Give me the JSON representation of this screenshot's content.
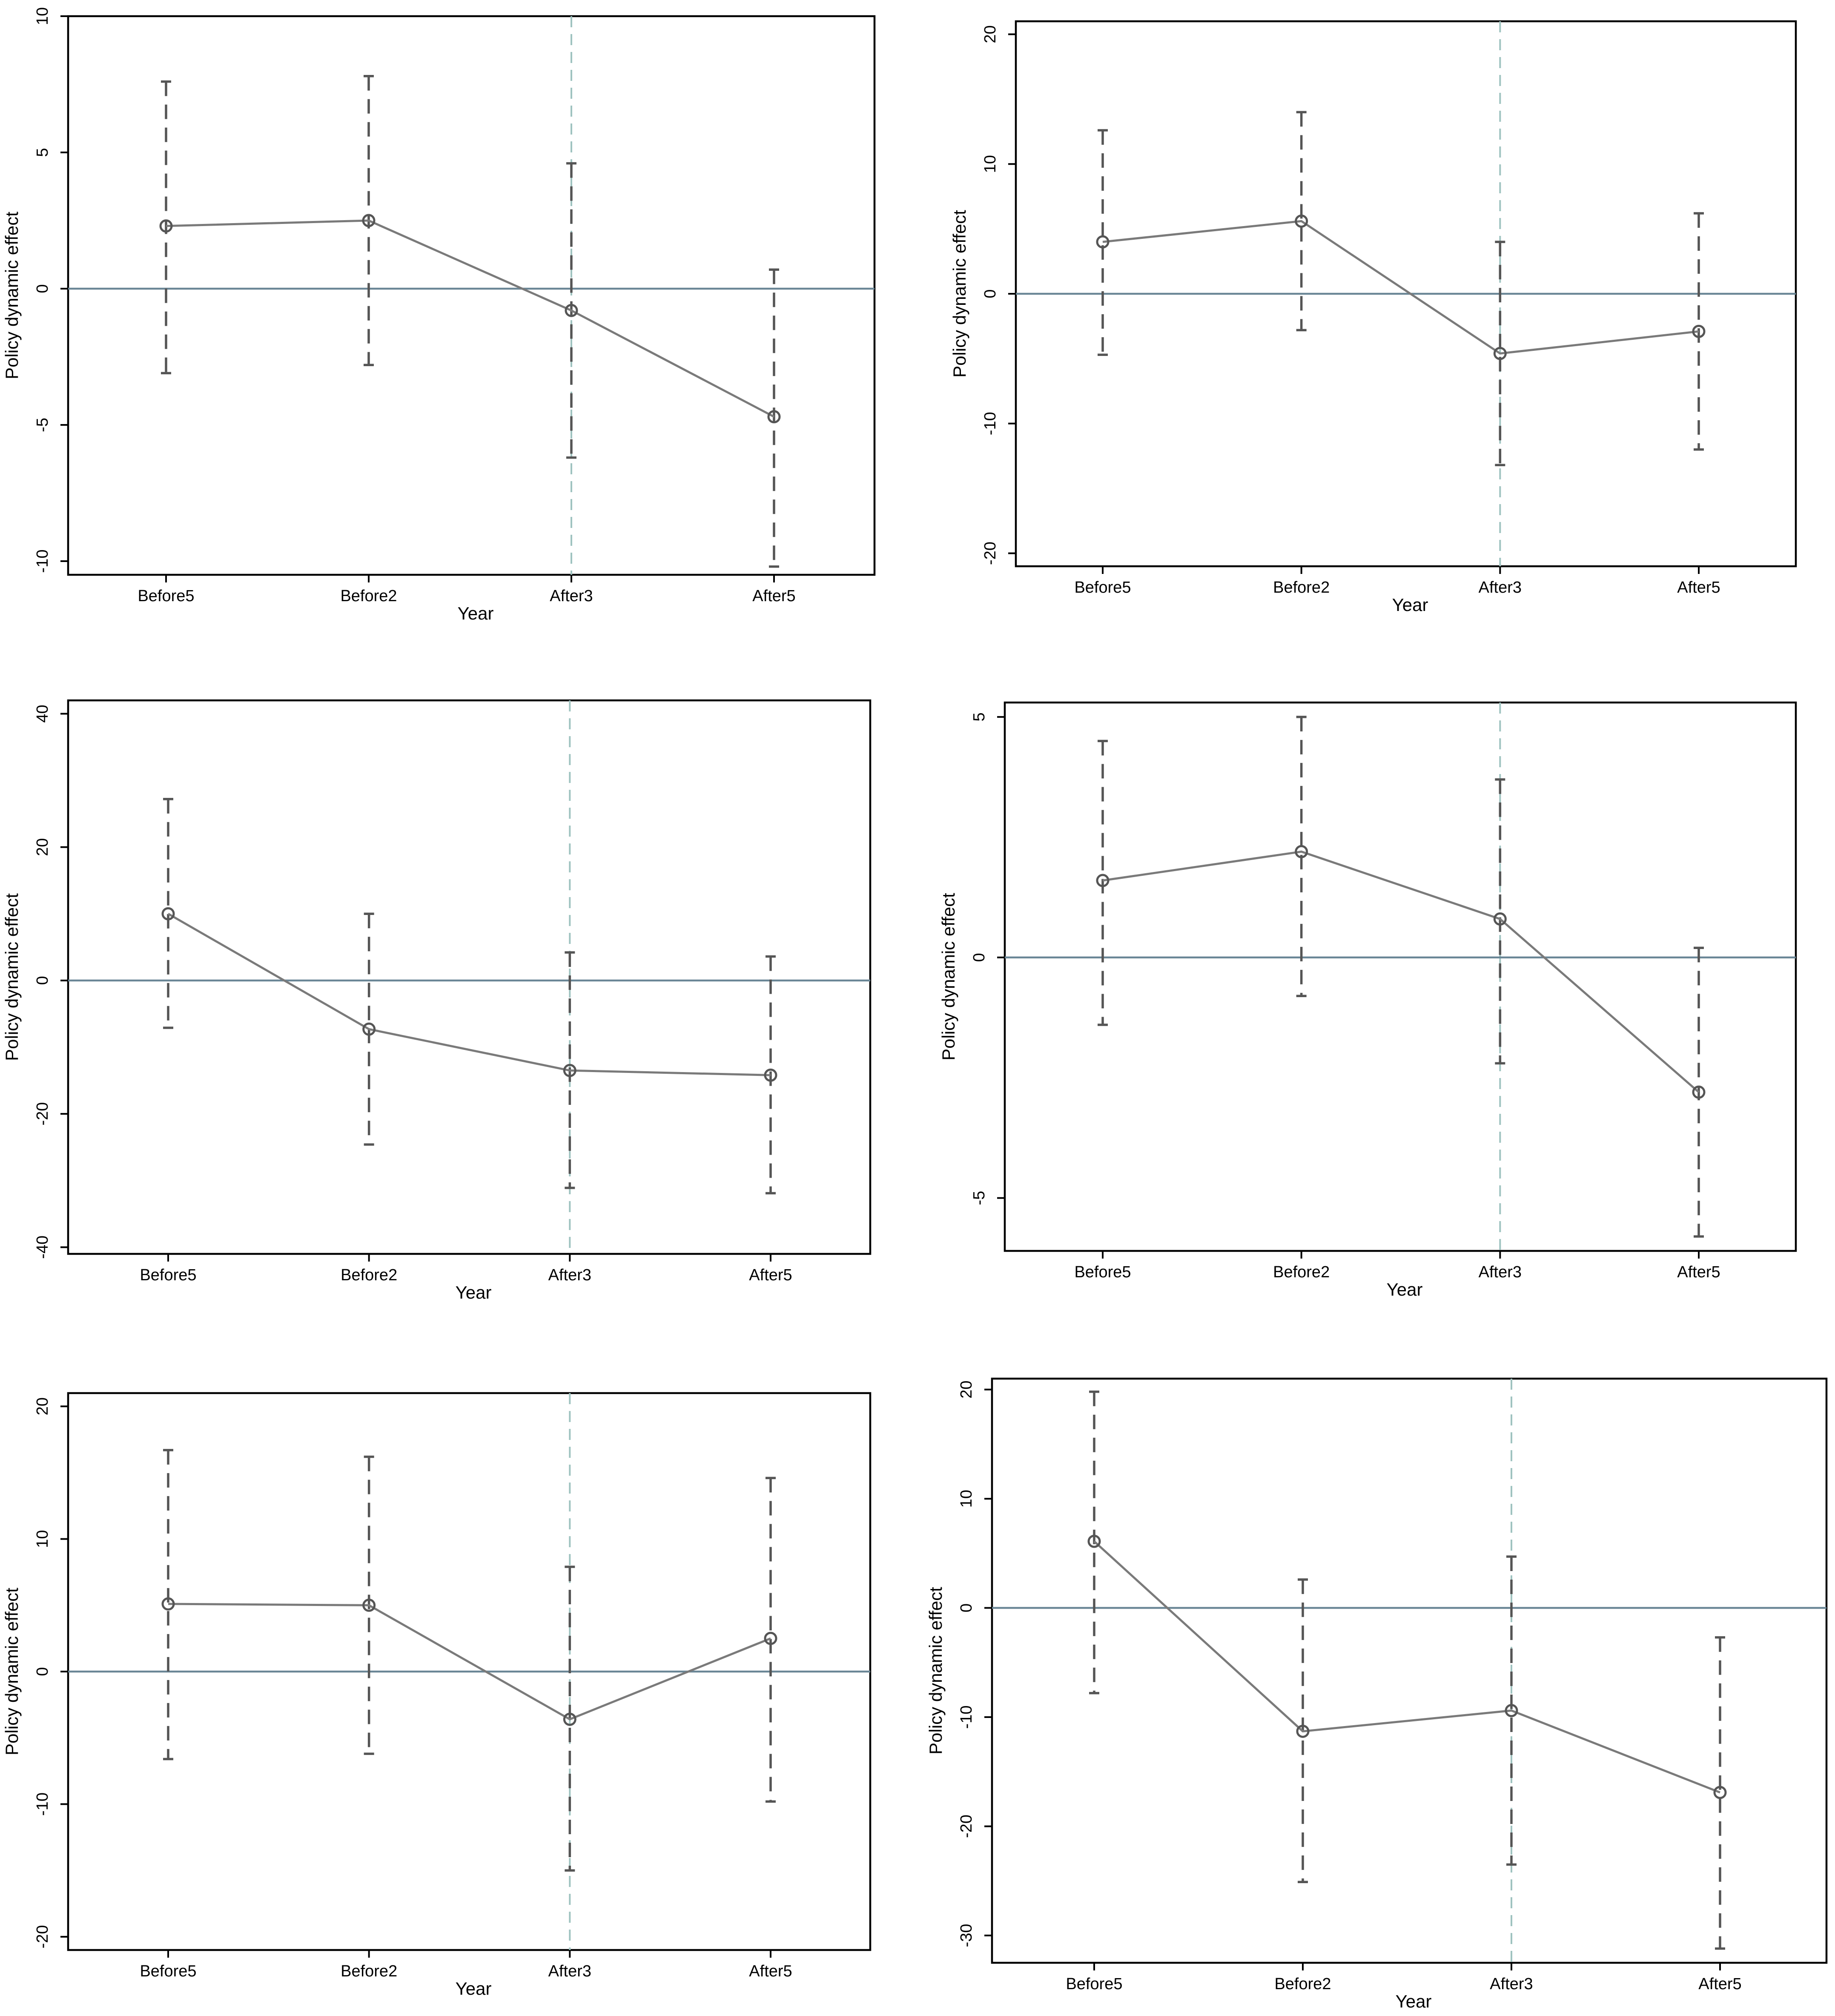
{
  "chart_data": [
    {
      "type": "line",
      "categories": [
        "Before5",
        "Before2",
        "After3",
        "After5"
      ],
      "event_category": "After3",
      "xlabel": "Year",
      "ylabel": "Policy dynamic effect",
      "ylim": [
        -10.5,
        10
      ],
      "yticks": [
        10,
        5,
        0,
        -5,
        -10
      ],
      "ytick_labels": [
        "10",
        "5",
        "0",
        "-5",
        "-10"
      ],
      "series": [
        {
          "values": [
            2.3,
            2.5,
            -0.8,
            -4.7
          ],
          "ci_upper": [
            7.6,
            7.8,
            4.6,
            0.7
          ],
          "ci_lower": [
            -3.1,
            -2.8,
            -6.2,
            -10.2
          ]
        }
      ]
    },
    {
      "type": "line",
      "categories": [
        "Before5",
        "Before2",
        "After3",
        "After5"
      ],
      "event_category": "After3",
      "xlabel": "Year",
      "ylabel": "Policy dynamic effect",
      "ylim": [
        -21,
        21
      ],
      "yticks": [
        20,
        10,
        0,
        -10,
        -20
      ],
      "ytick_labels": [
        "20",
        "10",
        "0",
        "-10",
        "-20"
      ],
      "series": [
        {
          "values": [
            4.0,
            5.6,
            -4.6,
            -2.9
          ],
          "ci_upper": [
            12.6,
            14.0,
            4.0,
            6.2
          ],
          "ci_lower": [
            -4.7,
            -2.8,
            -13.2,
            -12.0
          ]
        }
      ]
    },
    {
      "type": "line",
      "categories": [
        "Before5",
        "Before2",
        "After3",
        "After5"
      ],
      "event_category": "After3",
      "xlabel": "Year",
      "ylabel": "Policy dynamic effect",
      "ylim": [
        -41,
        42
      ],
      "yticks": [
        40,
        20,
        0,
        -20,
        -40
      ],
      "ytick_labels": [
        "40",
        "20",
        "0",
        "-20",
        "-40"
      ],
      "series": [
        {
          "values": [
            10.0,
            -7.3,
            -13.5,
            -14.2
          ],
          "ci_upper": [
            27.2,
            10.0,
            4.2,
            3.6
          ],
          "ci_lower": [
            -7.1,
            -24.6,
            -31.1,
            -31.9
          ]
        }
      ]
    },
    {
      "type": "line",
      "categories": [
        "Before5",
        "Before2",
        "After3",
        "After5"
      ],
      "event_category": "After3",
      "xlabel": "Year",
      "ylabel": "Policy dynamic effect",
      "ylim": [
        -6.1,
        5.3
      ],
      "yticks": [
        5,
        0,
        -5
      ],
      "ytick_labels": [
        "5",
        "0",
        "-5"
      ],
      "series": [
        {
          "values": [
            1.6,
            2.2,
            0.8,
            -2.8
          ],
          "ci_upper": [
            4.5,
            5.0,
            3.7,
            0.2
          ],
          "ci_lower": [
            -1.4,
            -0.8,
            -2.2,
            -5.8
          ]
        }
      ]
    },
    {
      "type": "line",
      "categories": [
        "Before5",
        "Before2",
        "After3",
        "After5"
      ],
      "event_category": "After3",
      "xlabel": "Year",
      "ylabel": "Policy dynamic effect",
      "ylim": [
        -21,
        21
      ],
      "yticks": [
        20,
        10,
        0,
        -10,
        -20
      ],
      "ytick_labels": [
        "20",
        "10",
        "0",
        "-10",
        "-20"
      ],
      "series": [
        {
          "values": [
            5.1,
            5.0,
            -3.6,
            2.5
          ],
          "ci_upper": [
            16.7,
            16.2,
            7.9,
            14.6
          ],
          "ci_lower": [
            -6.6,
            -6.2,
            -15.0,
            -9.8
          ]
        }
      ]
    },
    {
      "type": "line",
      "categories": [
        "Before5",
        "Before2",
        "After3",
        "After5"
      ],
      "event_category": "After3",
      "xlabel": "Year",
      "ylabel": "Policy dynamic effect",
      "ylim": [
        -32.5,
        21
      ],
      "yticks": [
        20,
        10,
        0,
        -10,
        -20,
        -30
      ],
      "ytick_labels": [
        "20",
        "10",
        "0",
        "-10",
        "-20",
        "-30"
      ],
      "series": [
        {
          "values": [
            6.1,
            -11.3,
            -9.4,
            -16.9
          ],
          "ci_upper": [
            19.8,
            2.6,
            4.7,
            -2.7
          ],
          "ci_lower": [
            -7.8,
            -25.1,
            -23.5,
            -31.2
          ]
        }
      ]
    }
  ]
}
